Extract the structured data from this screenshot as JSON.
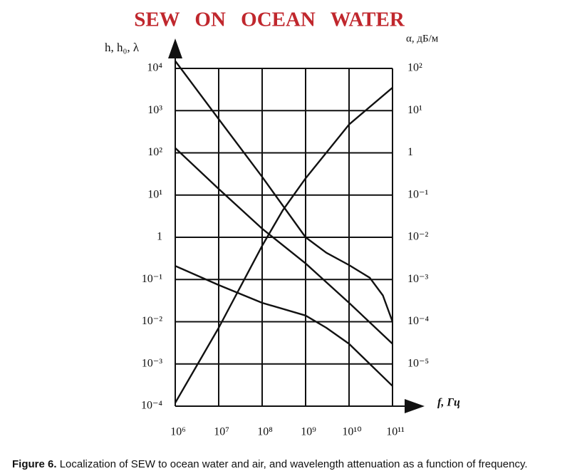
{
  "chart_data": {
    "type": "line",
    "title": "SEW ON OCEAN WATER",
    "y_label": "h, h₀, λ",
    "y2_label": "α, дБ/м",
    "x_label": "f, Гц",
    "xscale": "log",
    "yscale": "log",
    "y2scale": "log",
    "grid": true,
    "xlim": [
      1000000,
      100000000000
    ],
    "xticks": [
      {
        "value": 1000000,
        "label": "10⁶"
      },
      {
        "value": 10000000,
        "label": "10⁷"
      },
      {
        "value": 100000000,
        "label": "10⁸"
      },
      {
        "value": 1000000000,
        "label": "10⁹"
      },
      {
        "value": 10000000000,
        "label": "10¹⁰"
      },
      {
        "value": 100000000000,
        "label": "10¹¹"
      }
    ],
    "ylim": [
      0.0001,
      10000
    ],
    "yticks": [
      {
        "value": 10000,
        "label": "10⁴"
      },
      {
        "value": 1000,
        "label": "10³"
      },
      {
        "value": 100,
        "label": "10²"
      },
      {
        "value": 10,
        "label": "10¹"
      },
      1,
      {
        "value": 0.1,
        "label": "10⁻¹"
      },
      {
        "value": 0.01,
        "label": "10⁻²"
      },
      {
        "value": 0.001,
        "label": "10⁻³"
      },
      {
        "value": 0.0001,
        "label": "10⁻⁴"
      }
    ],
    "y2lim": [
      1e-06,
      100
    ],
    "y2ticks": [
      {
        "value": 100,
        "label": "10²"
      },
      {
        "value": 10,
        "label": "10¹"
      },
      1,
      {
        "value": 0.1,
        "label": "10⁻¹"
      },
      {
        "value": 0.01,
        "label": "10⁻²"
      },
      {
        "value": 0.001,
        "label": "10⁻³"
      },
      {
        "value": 0.0001,
        "label": "10⁻⁴"
      },
      {
        "value": 1e-05,
        "label": "10⁻⁵"
      }
    ],
    "series": [
      {
        "color": "#111111",
        "x": [
          1000000,
          10000000,
          100000000,
          1000000000,
          3000000000,
          10000000000,
          30000000000,
          60000000000,
          100000000000
        ],
        "values": [
          15000,
          630,
          27,
          1,
          0.43,
          0.22,
          0.11,
          0.042,
          0.01
        ]
      },
      {
        "color": "#111111",
        "x": [
          1000000,
          10000000,
          100000000,
          1000000000,
          10000000000,
          100000000000
        ],
        "values": [
          130,
          14,
          1.6,
          0.24,
          0.028,
          0.003
        ]
      },
      {
        "color": "#111111",
        "x": [
          1000000,
          10000000,
          100000000,
          1000000000,
          3000000000,
          10000000000,
          100000000000
        ],
        "values": [
          0.21,
          0.074,
          0.028,
          0.014,
          0.0072,
          0.003,
          0.0003
        ]
      },
      {
        "color": "#111111",
        "axis": "y2",
        "x": [
          1000000,
          10000000,
          100000000,
          300000000,
          1000000000,
          10000000000,
          100000000000
        ],
        "values": [
          1.2e-06,
          7.2e-05,
          0.0063,
          0.044,
          0.25,
          4.7,
          35
        ]
      }
    ],
    "caption": {
      "label": "Figure 6.",
      "text": "Localization of SEW to ocean water and air, and wavelength attenuation as a function of frequency."
    }
  }
}
